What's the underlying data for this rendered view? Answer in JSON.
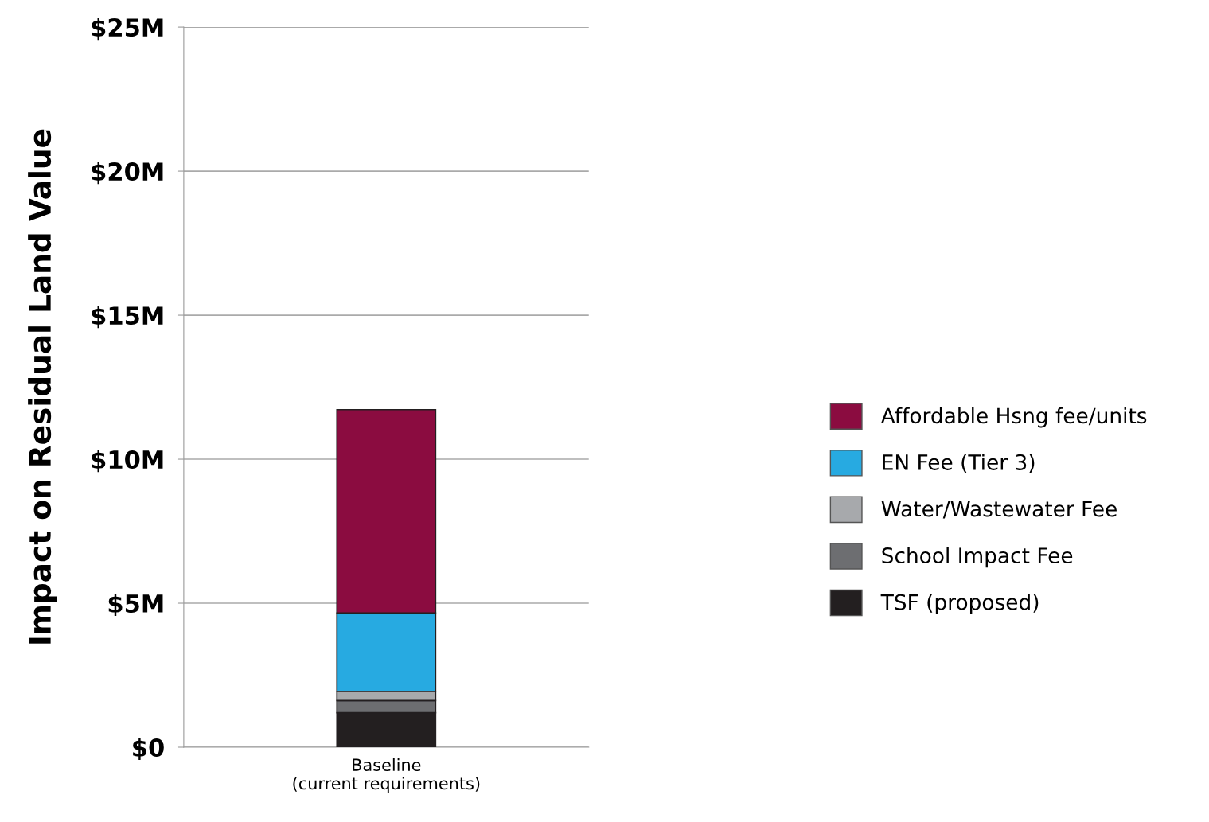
{
  "chart_data": {
    "type": "bar",
    "stacked": true,
    "ylabel": "Impact on Residual Land Value",
    "categories": [
      "Baseline\n(current requirements)"
    ],
    "series": [
      {
        "name": "TSF (proposed)",
        "color": "#231f20",
        "values": [
          1.2
        ]
      },
      {
        "name": "School Impact Fee",
        "color": "#6d6e71",
        "values": [
          0.42
        ]
      },
      {
        "name": "Water/Wastewater Fee",
        "color": "#a7a9ac",
        "values": [
          0.32
        ]
      },
      {
        "name": "EN Fee (Tier 3)",
        "color": "#27aae1",
        "values": [
          2.72
        ]
      },
      {
        "name": "Affordable Hsng fee/units",
        "color": "#8b0c40",
        "values": [
          7.06
        ]
      }
    ],
    "ylim": [
      0,
      25
    ],
    "yticks": [
      {
        "value": 0,
        "label": "$0"
      },
      {
        "value": 5,
        "label": "$5M"
      },
      {
        "value": 10,
        "label": "$10M"
      },
      {
        "value": 15,
        "label": "$15M"
      },
      {
        "value": 20,
        "label": "$20M"
      },
      {
        "value": 25,
        "label": "$25M"
      }
    ],
    "grid": "y",
    "legend": "right"
  }
}
